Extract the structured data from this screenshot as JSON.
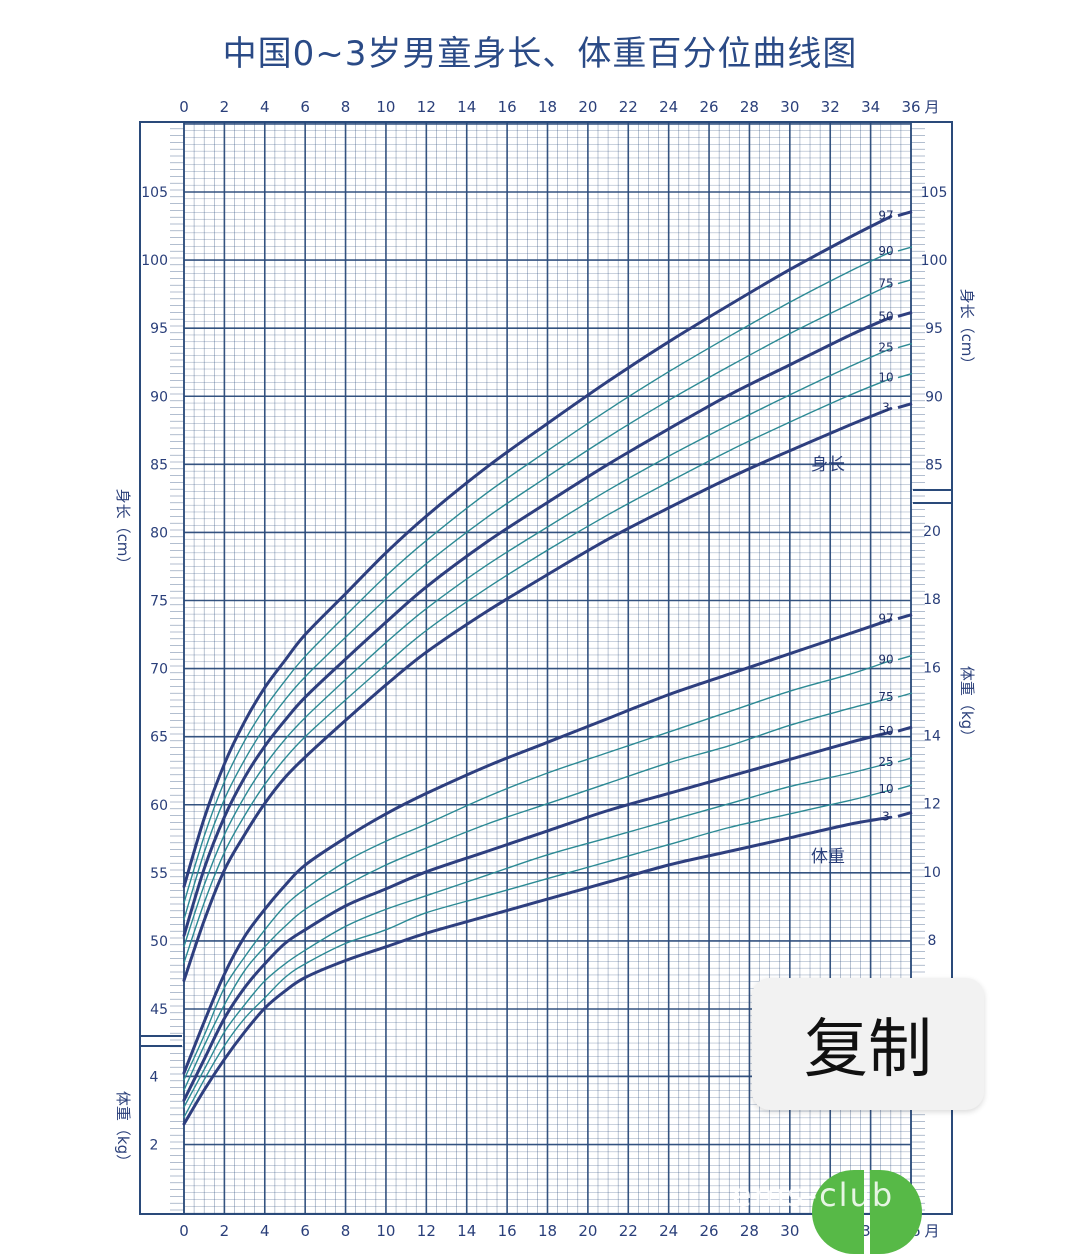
{
  "title": "中国0~3岁男童身长、体重百分位曲线图",
  "copy_button": "复制",
  "watermark": "ems-club",
  "chart_data": {
    "type": "line",
    "title": "中国0~3岁男童身长、体重百分位曲线图",
    "x_unit": "月",
    "x_ticks": [
      0,
      2,
      4,
      6,
      8,
      10,
      12,
      14,
      16,
      18,
      20,
      22,
      24,
      26,
      28,
      30,
      32,
      34,
      36
    ],
    "xlim": [
      0,
      36
    ],
    "grid": true,
    "colors": {
      "bold": "#2e3f7f",
      "thin": "#2c8a94",
      "grid": "#2a4a7a"
    },
    "length": {
      "label": "身长",
      "axis_label": "身长（cm）",
      "ylim": [
        42,
        110
      ],
      "left_ticks": [
        45,
        50,
        55,
        60,
        65,
        70,
        75,
        80,
        85,
        90,
        95,
        100,
        105
      ],
      "right_ticks": [
        85,
        90,
        95,
        100,
        105
      ],
      "x": [
        0,
        1,
        2,
        3,
        4,
        5,
        6,
        8,
        10,
        12,
        15,
        18,
        21,
        24,
        27,
        30,
        33,
        35
      ],
      "series": [
        {
          "name": "3",
          "bold": true,
          "values": [
            47.1,
            51.5,
            55.2,
            57.8,
            60.1,
            62.0,
            63.5,
            66.2,
            68.8,
            71.2,
            74.2,
            76.9,
            79.5,
            81.8,
            84.0,
            86.0,
            87.9,
            89.1
          ]
        },
        {
          "name": "10",
          "bold": false,
          "values": [
            48.4,
            52.8,
            56.5,
            59.2,
            61.5,
            63.4,
            65.0,
            67.7,
            70.3,
            72.8,
            75.9,
            78.7,
            81.3,
            83.7,
            86.0,
            88.1,
            90.1,
            91.3
          ]
        },
        {
          "name": "25",
          "bold": false,
          "values": [
            49.6,
            54.1,
            57.8,
            60.6,
            62.9,
            64.8,
            66.4,
            69.2,
            71.9,
            74.4,
            77.6,
            80.4,
            83.1,
            85.6,
            87.9,
            90.1,
            92.2,
            93.5
          ]
        },
        {
          "name": "50",
          "bold": true,
          "values": [
            50.4,
            55.3,
            59.1,
            62.0,
            64.3,
            66.2,
            67.9,
            70.7,
            73.4,
            76.0,
            79.3,
            82.2,
            85.0,
            87.6,
            90.1,
            92.3,
            94.5,
            95.8
          ]
        },
        {
          "name": "75",
          "bold": false,
          "values": [
            51.6,
            56.5,
            60.4,
            63.3,
            65.7,
            67.7,
            69.4,
            72.3,
            75.1,
            77.7,
            81.1,
            84.1,
            87.0,
            89.7,
            92.2,
            94.6,
            96.8,
            98.2
          ]
        },
        {
          "name": "90",
          "bold": false,
          "values": [
            52.8,
            57.7,
            61.7,
            64.7,
            67.1,
            69.1,
            70.9,
            73.9,
            76.8,
            79.4,
            82.9,
            86.0,
            89.0,
            91.8,
            94.4,
            96.9,
            99.2,
            100.6
          ]
        },
        {
          "name": "97",
          "bold": true,
          "values": [
            54.0,
            59.0,
            63.0,
            66.1,
            68.6,
            70.6,
            72.5,
            75.5,
            78.5,
            81.2,
            84.8,
            88.0,
            91.1,
            94.0,
            96.7,
            99.3,
            101.7,
            103.2
          ]
        }
      ]
    },
    "weight": {
      "label": "体重",
      "axis_label": "体重（kg）",
      "right_ticks": [
        8,
        10,
        12,
        14,
        16,
        18,
        20
      ],
      "left_ticks": [
        2,
        4
      ],
      "x": [
        0,
        1,
        2,
        3,
        4,
        5,
        6,
        8,
        10,
        12,
        15,
        18,
        21,
        24,
        27,
        30,
        33,
        35
      ],
      "series": [
        {
          "name": "3",
          "bold": true,
          "values": [
            2.6,
            3.6,
            4.5,
            5.3,
            6.0,
            6.5,
            6.9,
            7.4,
            7.8,
            8.2,
            8.7,
            9.2,
            9.7,
            10.2,
            10.6,
            11.0,
            11.4,
            11.6
          ]
        },
        {
          "name": "10",
          "bold": false,
          "values": [
            2.8,
            3.9,
            4.9,
            5.7,
            6.3,
            6.9,
            7.3,
            7.9,
            8.3,
            8.8,
            9.3,
            9.8,
            10.3,
            10.8,
            11.3,
            11.7,
            12.1,
            12.4
          ]
        },
        {
          "name": "25",
          "bold": false,
          "values": [
            3.1,
            4.2,
            5.3,
            6.1,
            6.8,
            7.3,
            7.7,
            8.4,
            8.9,
            9.3,
            9.9,
            10.5,
            11.0,
            11.5,
            12.0,
            12.5,
            12.9,
            13.2
          ]
        },
        {
          "name": "50",
          "bold": true,
          "values": [
            3.3,
            4.5,
            5.7,
            6.6,
            7.3,
            7.9,
            8.3,
            9.0,
            9.5,
            10.0,
            10.6,
            11.2,
            11.8,
            12.3,
            12.8,
            13.3,
            13.8,
            14.1
          ]
        },
        {
          "name": "75",
          "bold": false,
          "values": [
            3.6,
            4.9,
            6.1,
            7.1,
            7.8,
            8.4,
            8.9,
            9.6,
            10.2,
            10.7,
            11.4,
            12.0,
            12.6,
            13.2,
            13.7,
            14.3,
            14.8,
            15.1
          ]
        },
        {
          "name": "90",
          "bold": false,
          "values": [
            3.9,
            5.2,
            6.6,
            7.5,
            8.3,
            9.0,
            9.5,
            10.3,
            10.9,
            11.4,
            12.2,
            12.9,
            13.5,
            14.1,
            14.7,
            15.3,
            15.8,
            16.2
          ]
        },
        {
          "name": "97",
          "bold": true,
          "values": [
            4.1,
            5.6,
            7.0,
            8.1,
            8.9,
            9.6,
            10.2,
            11.0,
            11.7,
            12.3,
            13.1,
            13.8,
            14.5,
            15.2,
            15.8,
            16.4,
            17.0,
            17.4
          ]
        }
      ]
    }
  }
}
